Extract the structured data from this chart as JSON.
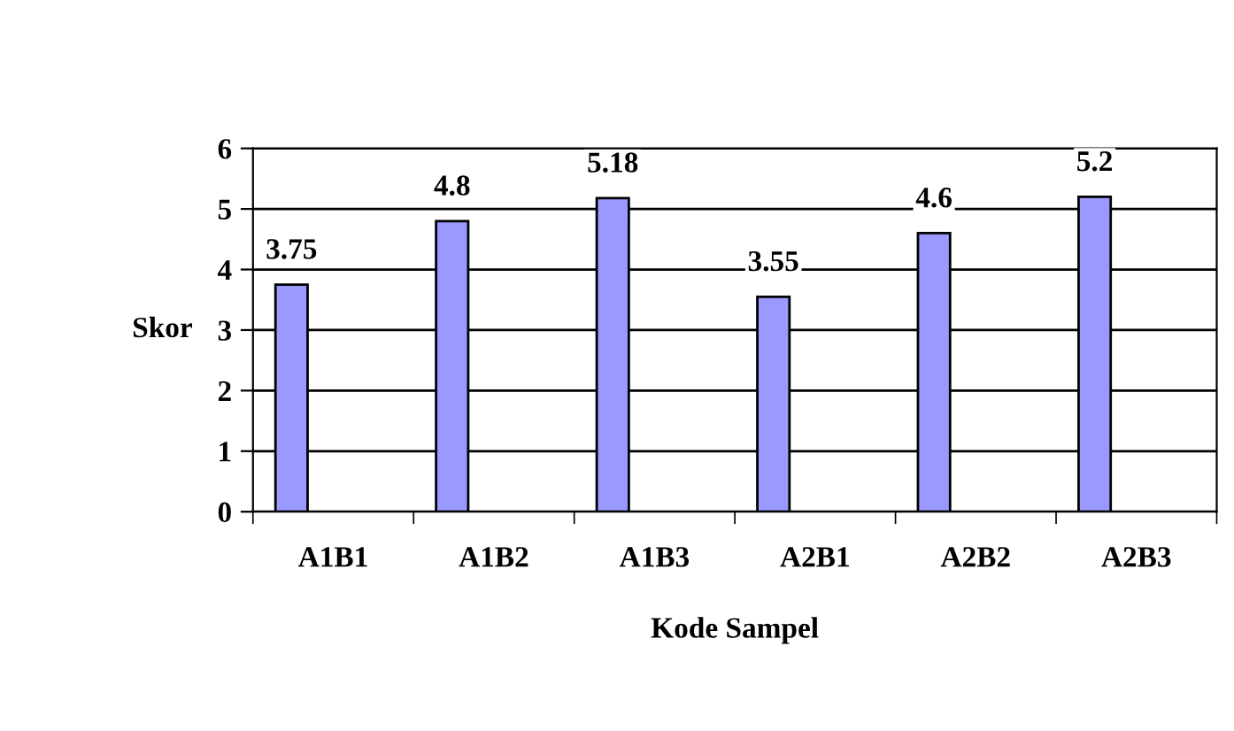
{
  "chart_data": {
    "type": "bar",
    "xlabel": "Kode Sampel",
    "ylabel": "Skor",
    "categories": [
      "A1B1",
      "A1B2",
      "A1B3",
      "A2B1",
      "A2B2",
      "A2B3"
    ],
    "values": [
      3.75,
      4.8,
      5.18,
      3.55,
      4.6,
      5.2
    ],
    "color": "#9999ff",
    "ylim": [
      0,
      6
    ],
    "yticks": [
      0,
      1,
      2,
      3,
      4,
      5,
      6
    ],
    "grid": "y",
    "data_labels": true
  }
}
